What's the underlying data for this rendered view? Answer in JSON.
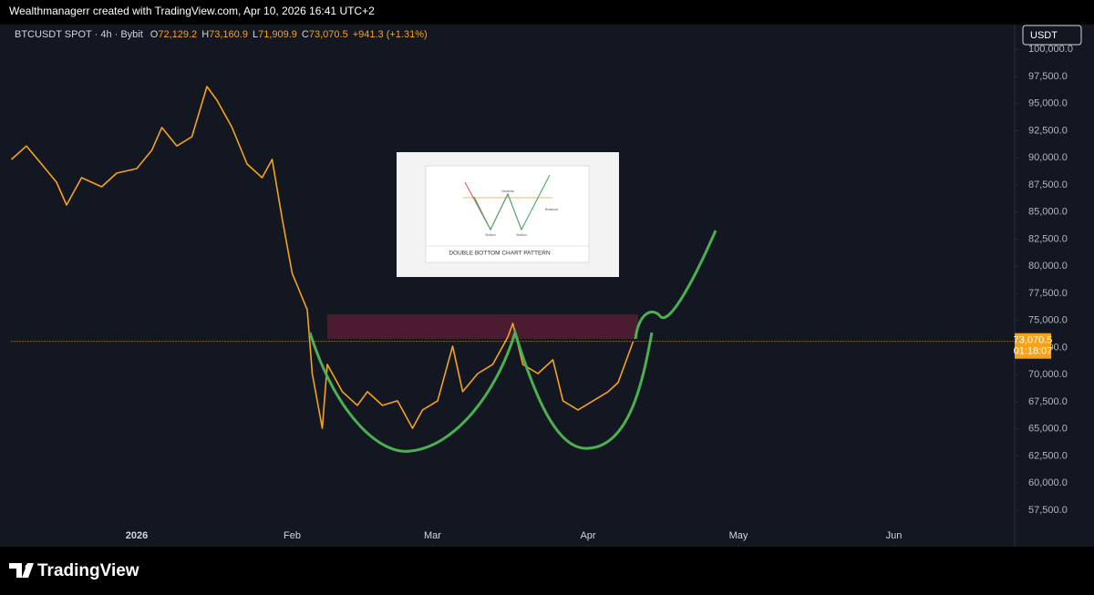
{
  "header": {
    "credit": "Wealthmanagerr created with TradingView.com, Apr 10, 2026 16:41 UTC+2",
    "symbol": "BTCUSDT SPOT · 4h · Bybit",
    "ohlc": [
      [
        "O",
        "72,129.2"
      ],
      [
        "H",
        "73,160.9"
      ],
      [
        "L",
        "71,909.9"
      ],
      [
        "C",
        "73,070.5"
      ]
    ],
    "change": "+941.3 (+1.31%)"
  },
  "currency": "USDT",
  "inset": {
    "title": "DOUBLE BOTTOM CHART PATTERN",
    "labels": [
      "Neckline",
      "Bottom",
      "Bottom",
      "Breakout"
    ]
  },
  "footer": "TradingView",
  "chart_data": {
    "type": "line",
    "color": "#f7a21b",
    "x": [
      -25,
      -22,
      -19,
      -16,
      -14,
      -11,
      -7,
      -4,
      0,
      3,
      5,
      8,
      11,
      14,
      16,
      19,
      22,
      25,
      27,
      29,
      31,
      34,
      35,
      37,
      38,
      41,
      44,
      46,
      49,
      52,
      55,
      57,
      60,
      63,
      65,
      68,
      71,
      74,
      75,
      77,
      80,
      83,
      85,
      88,
      91,
      94,
      96,
      98,
      99
    ],
    "values": [
      89850,
      91100,
      89430,
      87750,
      85650,
      88170,
      87330,
      88590,
      89010,
      90700,
      92800,
      91100,
      91950,
      96580,
      95320,
      92800,
      89430,
      88170,
      89850,
      84400,
      79350,
      75990,
      70100,
      65060,
      70950,
      68430,
      67170,
      68430,
      67170,
      67590,
      65060,
      66750,
      67590,
      72630,
      68430,
      70100,
      70950,
      73470,
      74730,
      70950,
      70100,
      71370,
      67590,
      66750,
      67590,
      68430,
      69270,
      71790,
      73050
    ],
    "xlim": [
      -25,
      175
    ],
    "xticks": [
      {
        "value": 0,
        "label": "2026"
      },
      {
        "value": 31,
        "label": "Feb"
      },
      {
        "value": 59,
        "label": "Mar"
      },
      {
        "value": 90,
        "label": "Apr"
      },
      {
        "value": 120,
        "label": "May"
      },
      {
        "value": 151,
        "label": "Jun"
      }
    ],
    "ylim": [
      54300,
      102040
    ],
    "yticks": [
      {
        "value": 57500,
        "label": "57,500.0"
      },
      {
        "value": 60000,
        "label": "60,000.0"
      },
      {
        "value": 62500,
        "label": "62,500.0"
      },
      {
        "value": 65000,
        "label": "65,000.0"
      },
      {
        "value": 67500,
        "label": "67,500.0"
      },
      {
        "value": 70000,
        "label": "70,000.0"
      },
      {
        "value": 72500,
        "label": "72,500.0"
      },
      {
        "value": 75000,
        "label": "75,000.0"
      },
      {
        "value": 77500,
        "label": "77,500.0"
      },
      {
        "value": 80000,
        "label": "80,000.0"
      },
      {
        "value": 82500,
        "label": "82,500.0"
      },
      {
        "value": 85000,
        "label": "85,000.0"
      },
      {
        "value": 87500,
        "label": "87,500.0"
      },
      {
        "value": 90000,
        "label": "90,000.0"
      },
      {
        "value": 92500,
        "label": "92,500.0"
      },
      {
        "value": 95000,
        "label": "95,000.0"
      },
      {
        "value": 97500,
        "label": "97,500.0"
      },
      {
        "value": 100000,
        "label": "100,000.0"
      }
    ],
    "zone": [
      73300,
      75570
    ],
    "last_price": {
      "value": 73070.5,
      "label": "73,070.5"
    },
    "countdown": "01:18:07"
  }
}
